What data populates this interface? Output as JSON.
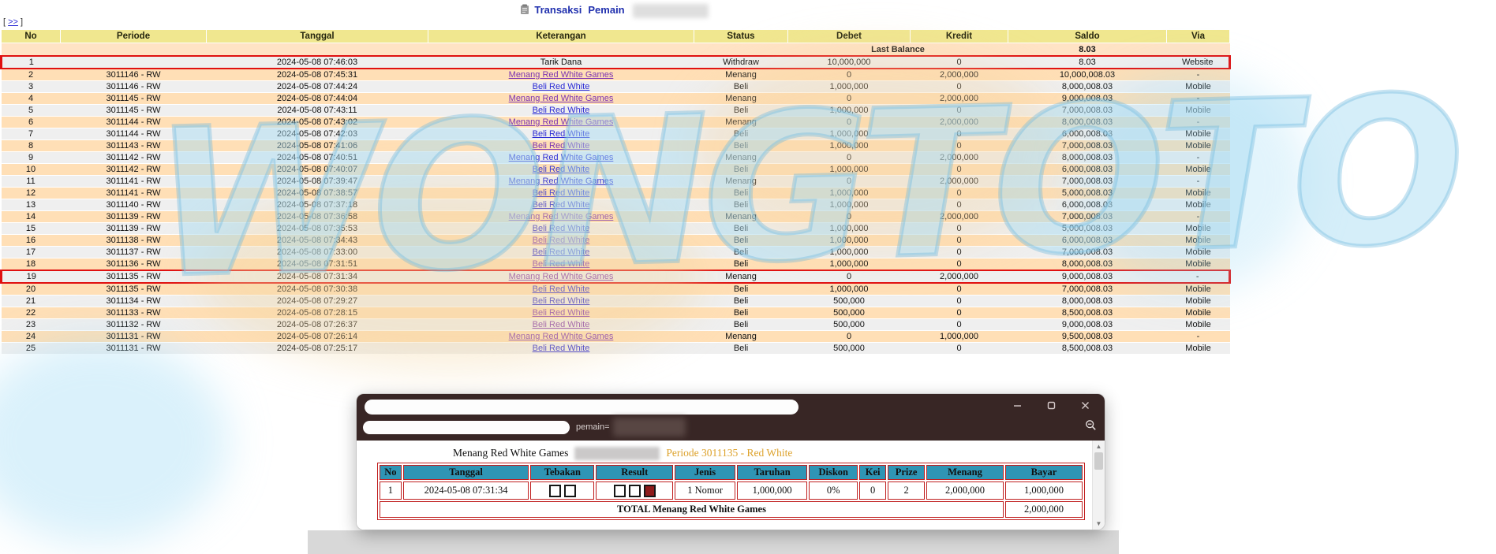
{
  "page": {
    "nav_more": ">>",
    "title_links": [
      "Transaksi",
      "Pemain"
    ]
  },
  "main_table": {
    "columns": [
      "No",
      "Periode",
      "Tanggal",
      "Keterangan",
      "Status",
      "Debet",
      "Kredit",
      "Saldo",
      "Via"
    ],
    "last_balance_label": "Last Balance",
    "last_balance_value": "8.03",
    "rows": [
      {
        "no": "1",
        "periode": "",
        "tanggal": "2024-05-08 07:46:03",
        "keterangan": "Tarik Dana",
        "link": false,
        "visited": false,
        "status": "Withdraw",
        "debet": "10,000,000",
        "kredit": "0",
        "saldo": "8.03",
        "via": "Website",
        "highlight": true
      },
      {
        "no": "2",
        "periode": "3011146 - RW",
        "tanggal": "2024-05-08 07:45:31",
        "keterangan": "Menang Red White Games",
        "link": true,
        "visited": true,
        "status": "Menang",
        "debet": "0",
        "kredit": "2,000,000",
        "saldo": "10,000,008.03",
        "via": "-",
        "highlight": false
      },
      {
        "no": "3",
        "periode": "3011146 - RW",
        "tanggal": "2024-05-08 07:44:24",
        "keterangan": "Beli Red White",
        "link": true,
        "visited": false,
        "status": "Beli",
        "debet": "1,000,000",
        "kredit": "0",
        "saldo": "8,000,008.03",
        "via": "Mobile",
        "highlight": false
      },
      {
        "no": "4",
        "periode": "3011145 - RW",
        "tanggal": "2024-05-08 07:44:04",
        "keterangan": "Menang Red White Games",
        "link": true,
        "visited": true,
        "status": "Menang",
        "debet": "0",
        "kredit": "2,000,000",
        "saldo": "9,000,008.03",
        "via": "-",
        "highlight": false
      },
      {
        "no": "5",
        "periode": "3011145 - RW",
        "tanggal": "2024-05-08 07:43:11",
        "keterangan": "Beli Red White",
        "link": true,
        "visited": false,
        "status": "Beli",
        "debet": "1,000,000",
        "kredit": "0",
        "saldo": "7,000,008.03",
        "via": "Mobile",
        "highlight": false
      },
      {
        "no": "6",
        "periode": "3011144 - RW",
        "tanggal": "2024-05-08 07:43:02",
        "keterangan": "Menang Red White Games",
        "link": true,
        "visited": true,
        "status": "Menang",
        "debet": "0",
        "kredit": "2,000,000",
        "saldo": "8,000,008.03",
        "via": "-",
        "highlight": false
      },
      {
        "no": "7",
        "periode": "3011144 - RW",
        "tanggal": "2024-05-08 07:42:03",
        "keterangan": "Beli Red White",
        "link": true,
        "visited": false,
        "status": "Beli",
        "debet": "1,000,000",
        "kredit": "0",
        "saldo": "6,000,008.03",
        "via": "Mobile",
        "highlight": false
      },
      {
        "no": "8",
        "periode": "3011143 - RW",
        "tanggal": "2024-05-08 07:41:06",
        "keterangan": "Beli Red White",
        "link": true,
        "visited": true,
        "status": "Beli",
        "debet": "1,000,000",
        "kredit": "0",
        "saldo": "7,000,008.03",
        "via": "Mobile",
        "highlight": false
      },
      {
        "no": "9",
        "periode": "3011142 - RW",
        "tanggal": "2024-05-08 07:40:51",
        "keterangan": "Menang Red White Games",
        "link": true,
        "visited": false,
        "status": "Menang",
        "debet": "0",
        "kredit": "2,000,000",
        "saldo": "8,000,008.03",
        "via": "-",
        "highlight": false
      },
      {
        "no": "10",
        "periode": "3011142 - RW",
        "tanggal": "2024-05-08 07:40:07",
        "keterangan": "Beli Red White",
        "link": true,
        "visited": false,
        "status": "Beli",
        "debet": "1,000,000",
        "kredit": "0",
        "saldo": "6,000,008.03",
        "via": "Mobile",
        "highlight": false
      },
      {
        "no": "11",
        "periode": "3011141 - RW",
        "tanggal": "2024-05-08 07:39:47",
        "keterangan": "Menang Red White Games",
        "link": true,
        "visited": false,
        "status": "Menang",
        "debet": "0",
        "kredit": "2,000,000",
        "saldo": "7,000,008.03",
        "via": "-",
        "highlight": false
      },
      {
        "no": "12",
        "periode": "3011141 - RW",
        "tanggal": "2024-05-08 07:38:57",
        "keterangan": "Beli Red White",
        "link": true,
        "visited": false,
        "status": "Beli",
        "debet": "1,000,000",
        "kredit": "0",
        "saldo": "5,000,008.03",
        "via": "Mobile",
        "highlight": false
      },
      {
        "no": "13",
        "periode": "3011140 - RW",
        "tanggal": "2024-05-08 07:37:18",
        "keterangan": "Beli Red White",
        "link": true,
        "visited": false,
        "status": "Beli",
        "debet": "1,000,000",
        "kredit": "0",
        "saldo": "6,000,008.03",
        "via": "Mobile",
        "highlight": false
      },
      {
        "no": "14",
        "periode": "3011139 - RW",
        "tanggal": "2024-05-08 07:36:58",
        "keterangan": "Menang Red White Games",
        "link": true,
        "visited": true,
        "status": "Menang",
        "debet": "0",
        "kredit": "2,000,000",
        "saldo": "7,000,008.03",
        "via": "-",
        "highlight": false
      },
      {
        "no": "15",
        "periode": "3011139 - RW",
        "tanggal": "2024-05-08 07:35:53",
        "keterangan": "Beli Red White",
        "link": true,
        "visited": false,
        "status": "Beli",
        "debet": "1,000,000",
        "kredit": "0",
        "saldo": "5,000,008.03",
        "via": "Mobile",
        "highlight": false
      },
      {
        "no": "16",
        "periode": "3011138 - RW",
        "tanggal": "2024-05-08 07:34:43",
        "keterangan": "Beli Red White",
        "link": true,
        "visited": true,
        "status": "Beli",
        "debet": "1,000,000",
        "kredit": "0",
        "saldo": "6,000,008.03",
        "via": "Mobile",
        "highlight": false
      },
      {
        "no": "17",
        "periode": "3011137 - RW",
        "tanggal": "2024-05-08 07:33:00",
        "keterangan": "Beli Red White",
        "link": true,
        "visited": false,
        "status": "Beli",
        "debet": "1,000,000",
        "kredit": "0",
        "saldo": "7,000,008.03",
        "via": "Mobile",
        "highlight": false
      },
      {
        "no": "18",
        "periode": "3011136 - RW",
        "tanggal": "2024-05-08 07:31:51",
        "keterangan": "Beli Red White",
        "link": true,
        "visited": true,
        "status": "Beli",
        "debet": "1,000,000",
        "kredit": "0",
        "saldo": "8,000,008.03",
        "via": "Mobile",
        "highlight": false
      },
      {
        "no": "19",
        "periode": "3011135 - RW",
        "tanggal": "2024-05-08 07:31:34",
        "keterangan": "Menang Red White Games",
        "link": true,
        "visited": true,
        "status": "Menang",
        "debet": "0",
        "kredit": "2,000,000",
        "saldo": "9,000,008.03",
        "via": "-",
        "highlight": true
      },
      {
        "no": "20",
        "periode": "3011135 - RW",
        "tanggal": "2024-05-08 07:30:38",
        "keterangan": "Beli Red White",
        "link": true,
        "visited": false,
        "status": "Beli",
        "debet": "1,000,000",
        "kredit": "0",
        "saldo": "7,000,008.03",
        "via": "Mobile",
        "highlight": false
      },
      {
        "no": "21",
        "periode": "3011134 - RW",
        "tanggal": "2024-05-08 07:29:27",
        "keterangan": "Beli Red White",
        "link": true,
        "visited": false,
        "status": "Beli",
        "debet": "500,000",
        "kredit": "0",
        "saldo": "8,000,008.03",
        "via": "Mobile",
        "highlight": false
      },
      {
        "no": "22",
        "periode": "3011133 - RW",
        "tanggal": "2024-05-08 07:28:15",
        "keterangan": "Beli Red White",
        "link": true,
        "visited": true,
        "status": "Beli",
        "debet": "500,000",
        "kredit": "0",
        "saldo": "8,500,008.03",
        "via": "Mobile",
        "highlight": false
      },
      {
        "no": "23",
        "periode": "3011132 - RW",
        "tanggal": "2024-05-08 07:26:37",
        "keterangan": "Beli Red White",
        "link": true,
        "visited": true,
        "status": "Beli",
        "debet": "500,000",
        "kredit": "0",
        "saldo": "9,000,008.03",
        "via": "Mobile",
        "highlight": false
      },
      {
        "no": "24",
        "periode": "3011131 - RW",
        "tanggal": "2024-05-08 07:26:14",
        "keterangan": "Menang Red White Games",
        "link": true,
        "visited": true,
        "status": "Menang",
        "debet": "0",
        "kredit": "1,000,000",
        "saldo": "9,500,008.03",
        "via": "-",
        "highlight": false
      },
      {
        "no": "25",
        "periode": "3011131 - RW",
        "tanggal": "2024-05-08 07:25:17",
        "keterangan": "Beli Red White",
        "link": true,
        "visited": false,
        "status": "Beli",
        "debet": "500,000",
        "kredit": "0",
        "saldo": "8,500,008.03",
        "via": "Mobile",
        "highlight": false
      }
    ]
  },
  "popup": {
    "url_param_label": "pemain=",
    "title_game": "Menang Red White Games",
    "title_periode": "Periode 3011135 - Red White",
    "table": {
      "columns": [
        "No",
        "Tanggal",
        "Tebakan",
        "Result",
        "Jenis",
        "Taruhan",
        "Diskon",
        "Kei",
        "Prize",
        "Menang",
        "Bayar"
      ],
      "rows": [
        {
          "no": "1",
          "tanggal": "2024-05-08 07:31:34",
          "tebakan": [
            "white",
            "white"
          ],
          "result": [
            "white",
            "white",
            "red"
          ],
          "jenis": "1 Nomor",
          "taruhan": "1,000,000",
          "diskon": "0%",
          "kei": "0",
          "prize": "2",
          "menang": "2,000,000",
          "bayar": "1,000,000"
        }
      ],
      "total_label": "TOTAL  Menang Red White Games",
      "total_value": "2,000,000"
    }
  },
  "watermark": {
    "text": "WONGTOTO"
  },
  "colors": {
    "header_yellow": "#f0e78f",
    "row_peach": "#ffdfb6",
    "row_gray": "#efefef",
    "last_balance_bg": "#ffe3c5",
    "status_red": "#f23b3b",
    "amount_blue": "#3b3bd8",
    "link_blue": "#2b2bd5",
    "link_visited_purple": "#7c33b2",
    "highlight_red": "#e01010",
    "popup_titlebar": "#382625",
    "popup_header_teal": "#2f95b5",
    "popup_border_red": "#c01f1f",
    "popup_periode_orange": "#dda22b"
  }
}
